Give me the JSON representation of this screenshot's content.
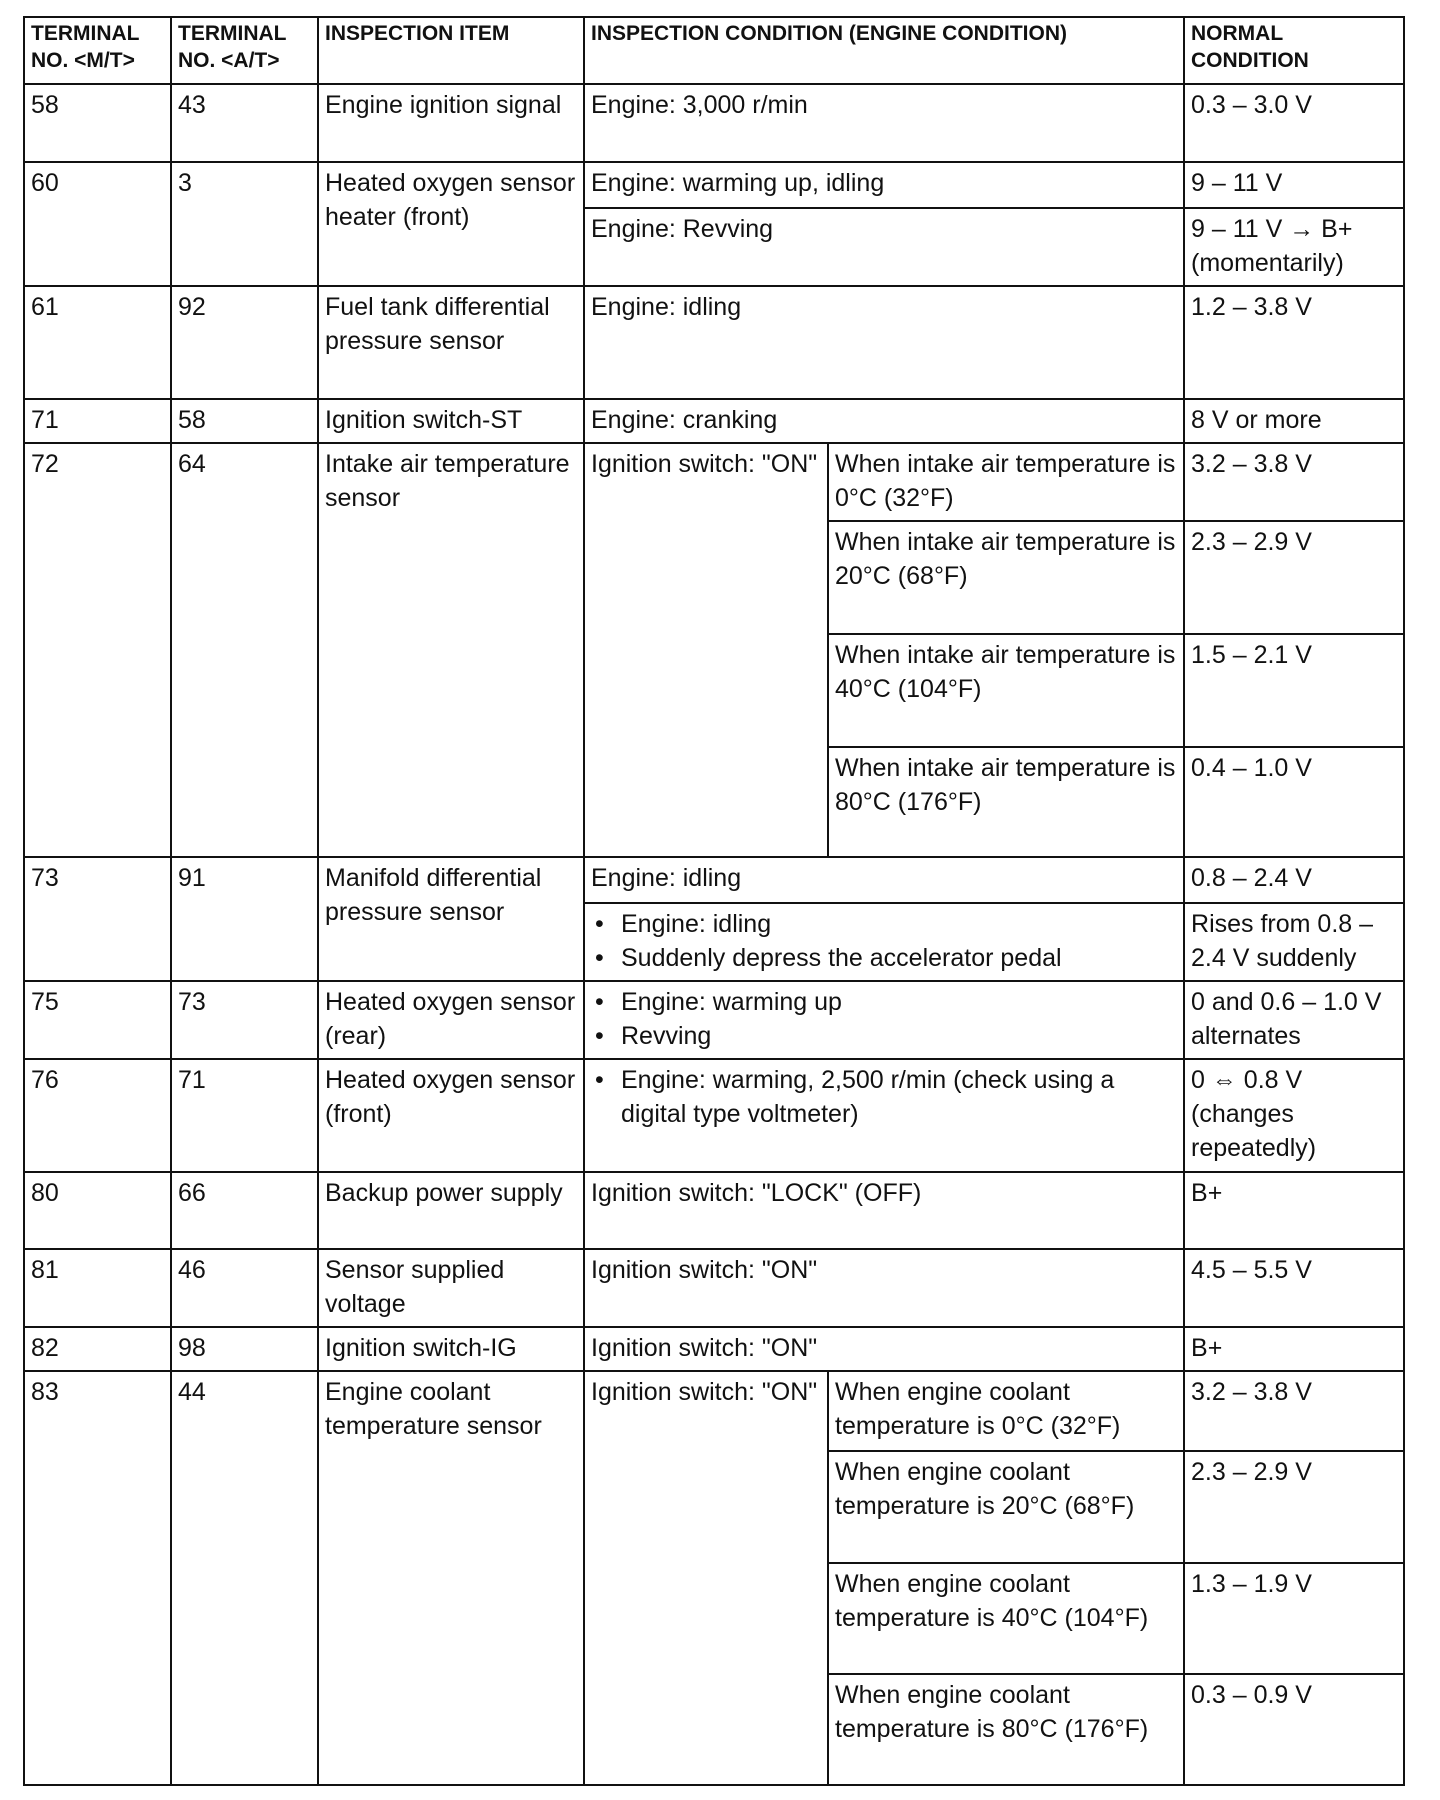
{
  "header": [
    "TERMINAL NO. <M/T>",
    "TERMINAL NO. <A/T>",
    "INSPECTION ITEM",
    "INSPECTION CONDITION (ENGINE CONDITION)",
    "NORMAL CONDITION"
  ],
  "rows": [
    {
      "mt": "58",
      "at": "43",
      "item": "Engine ignition signal",
      "cond": [
        "Engine: 3,000 r/min"
      ],
      "normal": [
        "0.3 – 3.0 V"
      ]
    },
    {
      "mt": "60",
      "at": "3",
      "item": "Heated oxygen sensor heater (front)",
      "cond": [
        "Engine: warming up, idling",
        "Engine: Revving"
      ],
      "normal": [
        "9 – 11 V",
        "9 – 11 V → B+ (momentarily)"
      ]
    },
    {
      "mt": "61",
      "at": "92",
      "item": "Fuel tank differential pressure sensor",
      "cond": [
        "Engine: idling"
      ],
      "normal": [
        "1.2 – 3.8 V"
      ]
    },
    {
      "mt": "71",
      "at": "58",
      "item": "Ignition switch-ST",
      "cond": [
        "Engine: cranking"
      ],
      "normal": [
        "8 V or more"
      ]
    },
    {
      "mt": "72",
      "at": "64",
      "item": "Intake air temperature sensor",
      "cond_main": "Ignition switch: \"ON\"",
      "cond": [
        "When intake air temperature is 0°C (32°F)",
        "When intake air temperature is 20°C (68°F)",
        "When intake air temperature is 40°C (104°F)",
        "When intake air temperature is 80°C (176°F)"
      ],
      "normal": [
        "3.2 – 3.8 V",
        "2.3 – 2.9 V",
        "1.5 – 2.1 V",
        "0.4 – 1.0 V"
      ]
    },
    {
      "mt": "73",
      "at": "91",
      "item": "Manifold differential pressure sensor",
      "cond": [
        "Engine: idling"
      ],
      "bullets": [
        "Engine: idling",
        "Suddenly depress the accelerator pedal"
      ],
      "normal": [
        "0.8 – 2.4 V",
        "Rises from 0.8 – 2.4 V suddenly"
      ]
    },
    {
      "mt": "75",
      "at": "73",
      "item": "Heated oxygen sensor (rear)",
      "bullets": [
        "Engine: warming up",
        "Revving"
      ],
      "normal": [
        "0 and 0.6 – 1.0 V alternates"
      ]
    },
    {
      "mt": "76",
      "at": "71",
      "item": "Heated oxygen sensor (front)",
      "bullets": [
        "Engine: warming, 2,500 r/min (check using a digital type voltmeter)"
      ],
      "normal": [
        "0 ⇔ 0.8 V (changes repeatedly)"
      ]
    },
    {
      "mt": "80",
      "at": "66",
      "item": "Backup power supply",
      "cond": [
        "Ignition switch: \"LOCK\" (OFF)"
      ],
      "normal": [
        "B+"
      ]
    },
    {
      "mt": "81",
      "at": "46",
      "item": "Sensor supplied voltage",
      "cond": [
        "Ignition switch: \"ON\""
      ],
      "normal": [
        "4.5 – 5.5 V"
      ]
    },
    {
      "mt": "82",
      "at": "98",
      "item": "Ignition switch-IG",
      "cond": [
        "Ignition switch: \"ON\""
      ],
      "normal": [
        "B+"
      ]
    },
    {
      "mt": "83",
      "at": "44",
      "item": "Engine coolant temperature sensor",
      "cond_main": "Ignition switch: \"ON\"",
      "cond": [
        "When engine coolant temperature is 0°C (32°F)",
        "When engine coolant temperature is 20°C (68°F)",
        "When engine coolant temperature is 40°C (104°F)",
        "When engine coolant temperature is 80°C (176°F)"
      ],
      "normal": [
        "3.2 – 3.8 V",
        "2.3 – 2.9 V",
        "1.3 – 1.9 V",
        "0.3 – 0.9 V"
      ]
    }
  ]
}
